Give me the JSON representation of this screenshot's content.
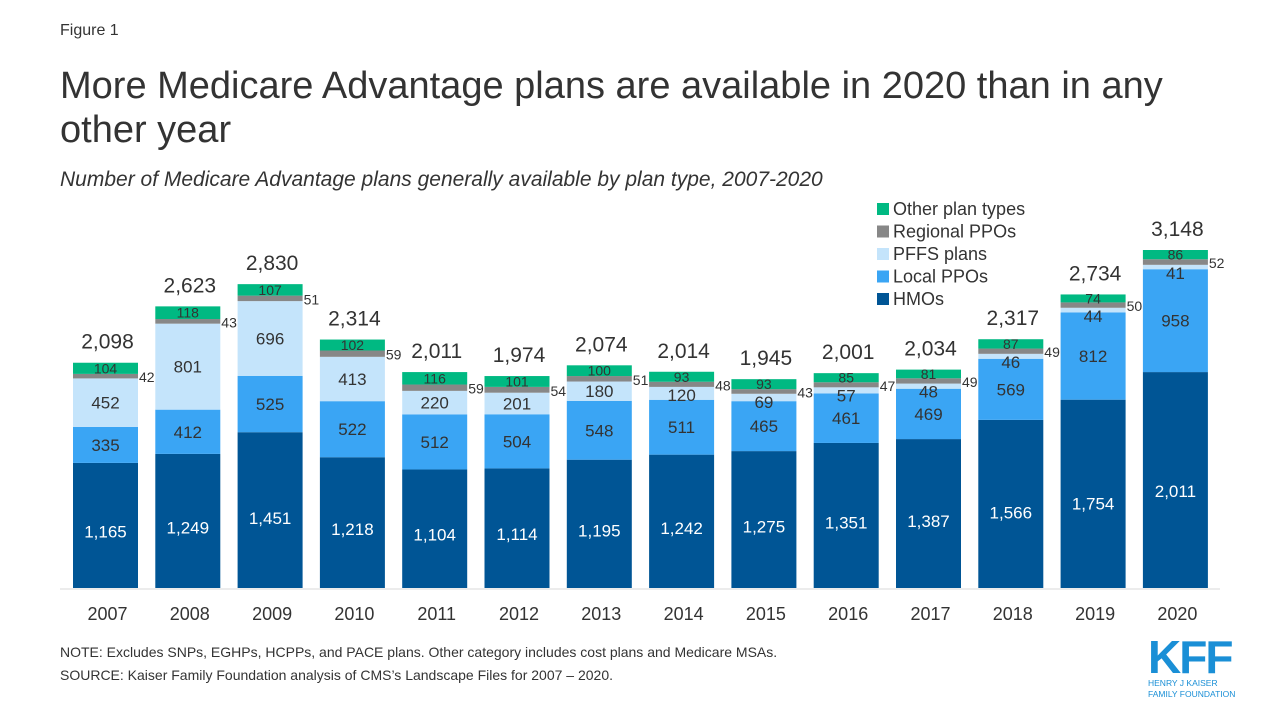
{
  "figure_label": "Figure 1",
  "title": "More Medicare Advantage plans are available in 2020 than in any other year",
  "subtitle": "Number of Medicare Advantage plans generally available by plan type, 2007-2020",
  "note": "NOTE: Excludes SNPs, EGHPs, HCPPs, and PACE plans. Other category includes cost plans and Medicare MSAs.",
  "source": "SOURCE: Kaiser Family Foundation analysis of CMS’s Landscape Files for 2007 – 2020.",
  "logo": {
    "mark": "KFF",
    "line1": "HENRY J KAISER",
    "line2": "FAMILY FOUNDATION"
  },
  "chart_data": {
    "type": "bar",
    "stacked": true,
    "title": "More Medicare Advantage plans are available in 2020 than in any other year",
    "subtitle": "Number of Medicare Advantage plans generally available by plan type, 2007-2020",
    "xlabel": "",
    "ylabel": "",
    "ylim": [
      0,
      3148
    ],
    "grid": false,
    "legend_position": "top-right",
    "categories": [
      "2007",
      "2008",
      "2009",
      "2010",
      "2011",
      "2012",
      "2013",
      "2014",
      "2015",
      "2016",
      "2017",
      "2018",
      "2019",
      "2020"
    ],
    "series": [
      {
        "name": "HMOs",
        "color": "#005595",
        "values": [
          1165,
          1249,
          1451,
          1218,
          1104,
          1114,
          1195,
          1242,
          1275,
          1351,
          1387,
          1566,
          1754,
          2011
        ]
      },
      {
        "name": "Local PPOs",
        "color": "#3aa5f4",
        "values": [
          335,
          412,
          525,
          522,
          512,
          504,
          548,
          511,
          465,
          461,
          469,
          569,
          812,
          958
        ]
      },
      {
        "name": "PFFS plans",
        "color": "#c4e4fb",
        "values": [
          452,
          801,
          696,
          413,
          220,
          201,
          180,
          120,
          69,
          57,
          48,
          46,
          44,
          41
        ]
      },
      {
        "name": "Regional PPOs",
        "color": "#878787",
        "values": [
          42,
          43,
          51,
          59,
          59,
          54,
          51,
          48,
          43,
          47,
          49,
          49,
          50,
          52
        ]
      },
      {
        "name": "Other plan types",
        "color": "#00b982",
        "values": [
          104,
          118,
          107,
          102,
          116,
          101,
          100,
          93,
          93,
          85,
          81,
          87,
          74,
          86
        ]
      }
    ],
    "totals": [
      "2,098",
      "2,623",
      "2,830",
      "2,314",
      "2,011",
      "1,974",
      "2,074",
      "2,014",
      "1,945",
      "2,001",
      "2,034",
      "2,317",
      "2,734",
      "3,148"
    ],
    "value_labels": {
      "HMOs": [
        "1,165",
        "1,249",
        "1,451",
        "1,218",
        "1,104",
        "1,114",
        "1,195",
        "1,242",
        "1,275",
        "1,351",
        "1,387",
        "1,566",
        "1,754",
        "2,011"
      ],
      "Local PPOs": [
        "335",
        "412",
        "525",
        "522",
        "512",
        "504",
        "548",
        "511",
        "465",
        "461",
        "469",
        "569",
        "812",
        "958"
      ],
      "PFFS plans": [
        "452",
        "801",
        "696",
        "413",
        "220",
        "201",
        "180",
        "120",
        "69",
        "57",
        "48",
        "46",
        "44",
        "41"
      ],
      "Regional PPOs": [
        "42",
        "43",
        "51",
        "59",
        "59",
        "54",
        "51",
        "48",
        "43",
        "47",
        "49",
        "49",
        "50",
        "52"
      ],
      "Other plan types": [
        "104",
        "118",
        "107",
        "102",
        "116",
        "101",
        "100",
        "93",
        "93",
        "85",
        "81",
        "87",
        "74",
        "86"
      ]
    },
    "legend": [
      "Other plan types",
      "Regional PPOs",
      "PFFS plans",
      "Local PPOs",
      "HMOs"
    ]
  }
}
